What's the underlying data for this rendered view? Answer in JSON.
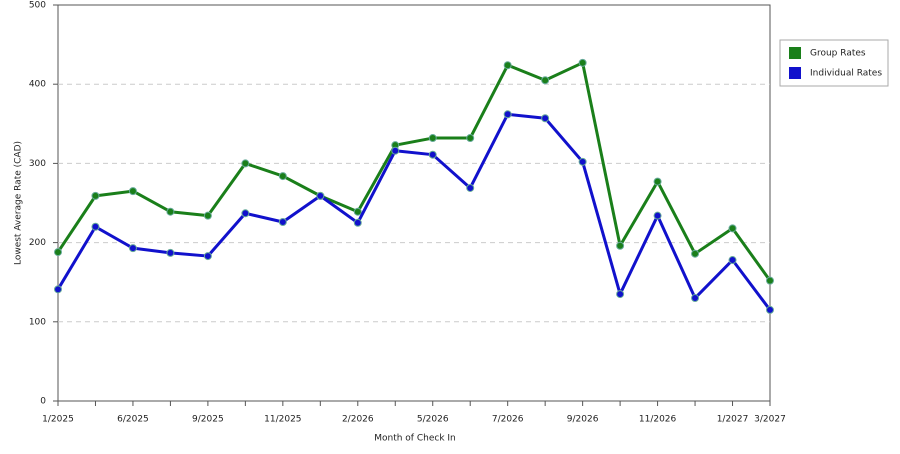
{
  "chart_data": {
    "type": "line",
    "x_label": "Month of Check In",
    "y_label": "Lowest Average Rate (CAD)",
    "categories": [
      "1/2025",
      null,
      "6/2025",
      null,
      "9/2025",
      null,
      "11/2025",
      null,
      "2/2026",
      null,
      "5/2026",
      null,
      "7/2026",
      null,
      "9/2026",
      null,
      "11/2026",
      null,
      "1/2027",
      "3/2027"
    ],
    "series": [
      {
        "name": "Group Rates",
        "color": "#1a7f1a",
        "values": [
          188,
          259,
          265,
          239,
          234,
          300,
          284,
          259,
          239,
          323,
          332,
          332,
          424,
          405,
          427,
          196,
          277,
          186,
          218,
          152
        ]
      },
      {
        "name": "Individual Rates",
        "color": "#1111cc",
        "values": [
          141,
          220,
          193,
          187,
          183,
          237,
          226,
          259,
          225,
          316,
          311,
          269,
          362,
          357,
          302,
          135,
          234,
          130,
          178,
          115
        ]
      }
    ],
    "ylim": [
      0,
      500
    ],
    "yticks": [
      0,
      100,
      200,
      300,
      400,
      500
    ],
    "grid": true,
    "legend": "right"
  }
}
